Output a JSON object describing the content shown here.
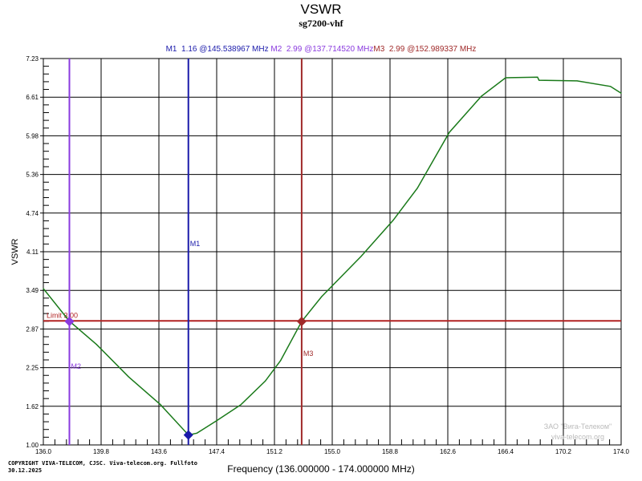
{
  "chart_data": {
    "type": "line",
    "title": "VSWR",
    "subtitle": "sg7200-vhf",
    "xlabel": "Frequency (136.000000 - 174.000000 MHz)",
    "ylabel": "VSWR",
    "xlim": [
      136.0,
      174.0
    ],
    "ylim": [
      1.0,
      7.23
    ],
    "x_ticks": [
      "136.0",
      "139.8",
      "143.6",
      "147.4",
      "151.2",
      "155.0",
      "158.8",
      "162.6",
      "166.4",
      "170.2",
      "174.0"
    ],
    "y_ticks": [
      "7.23",
      "6.61",
      "5.98",
      "5.36",
      "4.74",
      "4.11",
      "3.49",
      "2.87",
      "2.25",
      "1.62",
      "1.00"
    ],
    "grid": true,
    "series_color": "#1a7a1a",
    "x": [
      136.0,
      137.7,
      139.5,
      141.6,
      143.7,
      145.54,
      146.1,
      147.4,
      149.0,
      150.6,
      151.6,
      152.99,
      154.3,
      156.9,
      159.0,
      160.6,
      162.7,
      164.8,
      166.4,
      168.5,
      168.6,
      171.1,
      173.3,
      174.0
    ],
    "y": [
      3.52,
      3.0,
      2.62,
      2.1,
      1.65,
      1.16,
      1.19,
      1.39,
      1.65,
      2.03,
      2.36,
      2.99,
      3.39,
      4.04,
      4.62,
      5.14,
      6.04,
      6.62,
      6.92,
      6.93,
      6.88,
      6.87,
      6.78,
      6.67
    ],
    "limit": {
      "value": 3.0,
      "label": "Limit 3.00",
      "color": "#b22222"
    },
    "markers": [
      {
        "name": "M1",
        "value": 1.16,
        "freq": 145.538967,
        "color": "#1a1aaa",
        "text": "M1  1.16 @145.538967 MHz"
      },
      {
        "name": "M2",
        "value": 2.99,
        "freq": 137.71452,
        "color": "#8a3adf",
        "text": "M2  2.99 @137.714520 MHz"
      },
      {
        "name": "M3",
        "value": 2.99,
        "freq": 152.989337,
        "color": "#a02a2a",
        "text": "M3  2.99 @152.989337 MHz"
      }
    ]
  },
  "footer": {
    "copyright": "COPYRIGHT VIVA-TELECOM, CJSC. Viva-telecom.org. Fullfoto",
    "date": "30.12.2025",
    "watermark_line1": "ЗАО \"Вига-Телеком\"",
    "watermark_line2": "viva-telecom.org"
  }
}
